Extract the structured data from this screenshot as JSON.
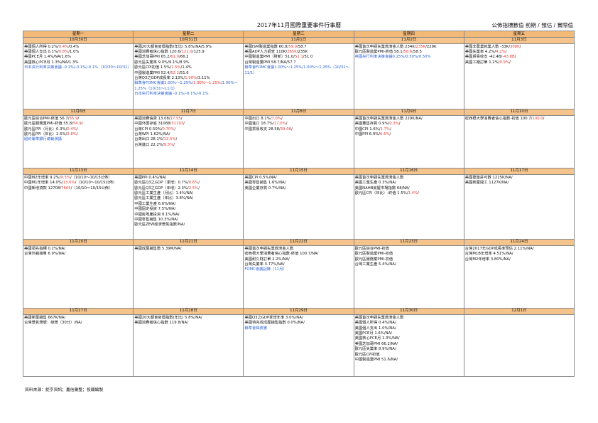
{
  "title": "2017年11月國際重要事件行事曆",
  "legend": "公佈指標數值 前期 / 預估 / 實際值",
  "source": "資料來源：鉅亨資訊；嘉信彙整；投顧編製",
  "weekdays": [
    "星期一",
    "星期二",
    "星期三",
    "星期四",
    "星期五"
  ],
  "weeks": [
    [
      {
        "date": "10月30日",
        "items": [
          {
            "t": "美國個人所得 0.2%/",
            "r": "0.4%",
            "e": "/0.4%"
          },
          {
            "t": "美國個人支出 0.1%/",
            "r": "0.8%",
            "e": "/1.0%"
          },
          {
            "t": "美國PCE月 1.4%/NA/1.6%"
          },
          {
            "t": "美國核心PCE月 1.3%/NA/1.3%"
          },
          {
            "b": "日本央行利率決策會議 -0.1%/-0.1%/-0.1%（10/30～10/31）",
            "wrap": true
          }
        ]
      },
      {
        "date": "10月31日",
        "items": [
          {
            "t": "美國20大都會房價指數(年比) 5.8%/NA/5.9%"
          },
          {
            "t": "美國消費者信心指數 120.6/",
            "r": "121.0",
            "e": "/125.9"
          },
          {
            "t": "美國芝加哥PMI 65.2/",
            "r": "61.0",
            "e": "/66.2"
          },
          {
            "t": "歐元區失業率 9.0%/9.1%/8.9%"
          },
          {
            "t": "歐元區CPI初值 1.5%/",
            "r": "1.5%",
            "e": "/1.4%"
          },
          {
            "t": "中國製造業PMI 52.4/",
            "r": "52.2",
            "e": "/51.6"
          },
          {
            "t": "台灣Q3之GDP成長率 2.13%/",
            "r": "1.90%",
            "e": "/3.11%"
          },
          {
            "b": "聯準會FOMC會議1.00%～1.25%/",
            "r": "1.00%～1.25%",
            "b2": "/1.00%～1.25%（10/31～11/1）",
            "wrap": true
          },
          {
            "b": "日本央行利率決策會議 -0.1%/-0.1%/-0.1%"
          }
        ]
      },
      {
        "date": "11月1日",
        "items": [
          {
            "t": "美國ISM製造業指數 60.8/",
            "r": "59.0",
            "e": "/58.7"
          },
          {
            "t": "美國ADP人力調查 110K/",
            "r": "265K",
            "e": "/235K"
          },
          {
            "t": "中國製造業PMI（財新）51.0/",
            "r": "51.1",
            "e": "/51.0"
          },
          {
            "t": "台灣製造業PMI 58.7/NA/57.7"
          },
          {
            "b": "聯準會FOMC會議1.00%～1.25%/1.00%～1.25%（10/31～11/1）",
            "wrap": true
          }
        ]
      },
      {
        "date": "11月2日",
        "items": [
          {
            "t": "美國首次申請失業救濟金人數 234K/",
            "r": "235K",
            "e": "/229K"
          },
          {
            "t": "歐元區製造業PMI-終值 58.1/",
            "r": "58.6",
            "e": "/58.5"
          },
          {
            "b": "英國央行利率決策會議0.25%/0.50%/0.50%"
          }
        ]
      },
      {
        "date": "11月3日",
        "items": [
          {
            "t": "美國非農業就業人數 -33K/",
            "r": "308K",
            "e": "/"
          },
          {
            "t": "美國失業率 4.2%/",
            "r": "4.2%",
            "e": "/"
          },
          {
            "t": "美國貿易收支 -42.4B/",
            "r": "-43.8B",
            "e": "/"
          },
          {
            "t": "美國工廠訂單 1.2%/",
            "r": "0.9%",
            "e": "/"
          }
        ]
      }
    ],
    [
      {
        "date": "11月6日",
        "items": [
          {
            "t": "歐元區綜合PMI-終值 56.7/",
            "r": "55.9",
            "e": "/"
          },
          {
            "t": "歐元區服務業PMI-終值 55.8/",
            "r": "54.9",
            "e": "/"
          },
          {
            "t": "歐元區PPI（月比）0.3%/",
            "r": "0.4%",
            "e": "/"
          },
          {
            "t": "歐元區PPI（年比）2.5%/",
            "r": "2.8%",
            "e": "/"
          },
          {
            "b": "紐約聯準銀行總裁演講"
          }
        ]
      },
      {
        "date": "11月7日",
        "items": [
          {
            "t": "美國消費信貸 13.08/",
            "r": "17.55",
            "e": "/"
          },
          {
            "t": "中國外匯存底 31088/",
            "r": "31193",
            "e": "/"
          },
          {
            "t": "台灣CPI 0.50%/",
            "r": "0.70%",
            "e": "/"
          },
          {
            "t": "台灣WPI 1.62%/NA/"
          },
          {
            "t": "台灣出口 28.1%/",
            "r": "12.5%",
            "e": "/"
          },
          {
            "t": "台灣進口 22.2%/",
            "r": "9.5%",
            "e": "/"
          }
        ]
      },
      {
        "date": "11月8日",
        "items": [
          {
            "t": "中國出口 8.1%/",
            "r": "7.0%",
            "e": "/"
          },
          {
            "t": "中國進口 18.7%/",
            "r": "17.0%",
            "e": "/"
          },
          {
            "t": "中國貿易收支 28.58/",
            "r": "39.08",
            "e": "/"
          }
        ]
      },
      {
        "date": "11月9日",
        "items": [
          {
            "t": "美國首次申請失業救濟金人數 229K/NA/"
          },
          {
            "t": "美國躉售存貨 0.9%/",
            "r": "0.3%",
            "e": "/"
          },
          {
            "t": "中國CPI 1.6%/",
            "r": "1.7%",
            "e": "/"
          },
          {
            "t": "中國PPI 6.9%/",
            "r": "6.6%",
            "e": "/"
          }
        ]
      },
      {
        "date": "11月10日",
        "items": [
          {
            "t": "密西根大學消費者信心指數-初值 100.7/",
            "r": "100.0",
            "e": "/"
          }
        ]
      }
    ],
    [
      {
        "date": "11月13日",
        "items": [
          {
            "t": "中國M2年增率 9.2%/",
            "r": "9.3%",
            "e": "/（10/10～10/15公佈）"
          },
          {
            "t": "中國M1年增率 14.0%/",
            "r": "13.6%",
            "e": "/（10/10～10/15公佈）",
            "wrap": true
          },
          {
            "t": "中國新增貸款 12708/",
            "r": "7605",
            "e": "/（10/10～10/15公佈）"
          }
        ]
      },
      {
        "date": "11月14日",
        "items": [
          {
            "t": "美國PPI 0.4%/NA/"
          },
          {
            "t": "歐元區Q3之GDP（季增）0.7%/",
            "r": "0.6%",
            "e": "/"
          },
          {
            "t": "歐元區Q3之GDP（年增）2.3%/",
            "r": "2.5%",
            "e": "/"
          },
          {
            "t": "歐元區工業生產（月比）1.4%/NA/"
          },
          {
            "t": "歐元區工業生產（年比）3.8%/NA/"
          },
          {
            "t": "中國工業生產 6.6%/NA/"
          },
          {
            "t": "中國固定投資 7.5%/NA/"
          },
          {
            "t": "中國房地產投資 8.1%/NA/"
          },
          {
            "t": "中國零售銷售 10.3%/NA/"
          },
          {
            "t": "歐元區ZEW經濟景氣指數/NA/"
          }
        ]
      },
      {
        "date": "11月15日",
        "items": [
          {
            "t": "美國CPI 0.5%/NA/"
          },
          {
            "t": "美國零售銷售 1.6%/NA/"
          },
          {
            "t": "美國企業存貨 0.7%/NA/"
          }
        ]
      },
      {
        "date": "11月16日",
        "items": [
          {
            "t": "美國首次申請失業救濟金人數"
          },
          {
            "t": "美國工業生產 0.3%/NA/"
          },
          {
            "t": "美國NAHB房屋市場指數 68/NA/"
          },
          {
            "t": "歐元區CPI（年比）-終值 1.5%/",
            "r": "1.4%",
            "e": "/"
          }
        ]
      },
      {
        "date": "11月17日",
        "items": [
          {
            "t": "美國建築許可數 1215K/NA/"
          },
          {
            "t": "美國新屋開工 1127K/NA/"
          }
        ]
      }
    ],
    [
      {
        "date": "11月20日",
        "items": [
          {
            "t": "美國領先指標 0.2%/NA/"
          },
          {
            "t": "台灣外銷接單 6.9%/NA/"
          }
        ]
      },
      {
        "date": "11月21日",
        "items": [
          {
            "t": "美國成屋銷售數 5.39M/NA/"
          }
        ]
      },
      {
        "date": "11月22日",
        "items": [
          {
            "t": "美國首次申請失業救濟金人數"
          },
          {
            "t": "密西根大學消費者信心指數-終值 100.7/NA/"
          },
          {
            "t": "美國耐久財訂單 2.2%/NA/"
          },
          {
            "t": "台灣失業率 3.77%/NA/"
          },
          {
            "b": "FOMC會議記錄（11月）"
          }
        ]
      },
      {
        "date": "11月23日",
        "items": [
          {
            "t": "歐元區綜合PMI-初值"
          },
          {
            "t": "歐元區製造業PMI-初值"
          },
          {
            "t": "歐元區服務業PMI-初值"
          },
          {
            "t": "台灣工業生產 5.4%/NA/"
          }
        ]
      },
      {
        "date": "11月24日",
        "items": [
          {
            "t": "台灣2017年GDP成長率預估 2.11%/NA/"
          },
          {
            "t": "台灣M1B年增率 4.51%/NA/"
          },
          {
            "t": "台灣M2年增率 3.80%/NA/"
          }
        ]
      }
    ],
    [
      {
        "date": "11月27日",
        "items": [
          {
            "t": "美國新屋銷售 667K/NA/"
          },
          {
            "t": "台灣景氣燈號：綠燈（30分）/NA/"
          }
        ]
      },
      {
        "date": "11月28日",
        "items": [
          {
            "t": "美國20大都會房價指數(年比) 5.8%/NA/"
          },
          {
            "t": "美國消費者信心指數 119.8/NA/"
          }
        ]
      },
      {
        "date": "11月29日",
        "items": [
          {
            "t": "美國Q3之GDP季增年率 3.0%/NA/"
          },
          {
            "t": "美國待完成成屋銷售指數 0.0%/NA/"
          },
          {
            "b": "聯準會褐皮書"
          }
        ]
      },
      {
        "date": "11月30日",
        "items": [
          {
            "t": "美國首次申請失業救濟金人數"
          },
          {
            "t": "美國個人所得 0.4%/NA/"
          },
          {
            "t": "美國個人支出 1.0%/NA/"
          },
          {
            "t": "美國PCE月 1.6%/NA/"
          },
          {
            "t": "美國核心PCE月 1.3%/NA/"
          },
          {
            "t": "美國芝加哥PMI 66.2/NA/"
          },
          {
            "t": "歐元區失業率 8.9%/NA/"
          },
          {
            "t": "歐元區CPI初值"
          },
          {
            "t": "中國製造業PMI 51.6/NA/"
          }
        ]
      },
      {
        "date": "12月1日",
        "items": []
      }
    ]
  ]
}
